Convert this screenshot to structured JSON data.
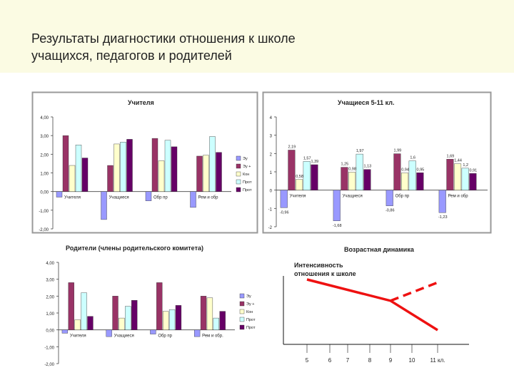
{
  "page": {
    "title_line1": "Результаты диагностики отношения к школе",
    "title_line2": "учащихся, педагогов и родителей",
    "background": "#fbfbe3"
  },
  "colors": {
    "series": [
      "#9999ff",
      "#993366",
      "#ffffcc",
      "#ccffff",
      "#660066"
    ],
    "line": "#ee1111",
    "frame": "#999999"
  },
  "chart_data": [
    {
      "type": "bar",
      "title": "Учителя",
      "categories": [
        "Учителя",
        "Учащиеся",
        "Обр пр",
        "Рем и обр"
      ],
      "y_tick_labels": [
        "4,00",
        "3,00",
        "2,00",
        "1,00",
        "0,00",
        "-1,00",
        "-2,00"
      ],
      "ylim": [
        -2,
        4
      ],
      "legend": [
        "Эу",
        "Эу +",
        "Кон",
        "Прот",
        "Прот"
      ],
      "legend_position": "right",
      "series": [
        {
          "values": [
            -0.3,
            -1.5,
            -0.5,
            -0.85
          ]
        },
        {
          "values": [
            3.0,
            1.4,
            2.85,
            1.9
          ]
        },
        {
          "values": [
            1.4,
            2.55,
            1.65,
            1.95
          ]
        },
        {
          "values": [
            2.5,
            2.65,
            2.75,
            2.95
          ]
        },
        {
          "values": [
            1.8,
            2.8,
            2.4,
            2.1
          ]
        }
      ]
    },
    {
      "type": "bar",
      "title": "Учащиеся 5-11 кл.",
      "categories": [
        "Учителя",
        "Учащиеся",
        "Обр пр",
        "Рем и обр"
      ],
      "y_tick_labels": [
        "4",
        "3",
        "2",
        "1",
        "0",
        "-1",
        "-2"
      ],
      "ylim": [
        -2,
        4
      ],
      "series": [
        {
          "values": [
            -0.96,
            -1.68,
            -0.86,
            -1.23
          ],
          "labels": [
            "-0,96",
            "-1,68",
            "-0,86",
            "-1,23"
          ]
        },
        {
          "values": [
            2.19,
            1.25,
            1.99,
            1.69
          ],
          "labels": [
            "2,19",
            "1,25",
            "1,99",
            "1,69"
          ]
        },
        {
          "values": [
            0.58,
            0.98,
            0.94,
            1.44
          ],
          "labels": [
            "0,58",
            "0,98",
            "0,94",
            "1,44"
          ]
        },
        {
          "values": [
            1.57,
            1.97,
            1.6,
            1.2
          ],
          "labels": [
            "1,57",
            "1,97",
            "1,6",
            "1,2"
          ]
        },
        {
          "values": [
            1.39,
            1.13,
            0.95,
            0.91
          ],
          "labels": [
            "1,39",
            "1,13",
            "0,95",
            "0,91"
          ]
        }
      ]
    },
    {
      "type": "bar",
      "title": "Родители (члены родительского комитета)",
      "categories": [
        "Учителя",
        "Учащиеся",
        "Обр пр",
        "Рем и обр."
      ],
      "y_tick_labels": [
        "4,00",
        "3,00",
        "2,00",
        "1,00",
        "0,00",
        "-1,00",
        "-2,00"
      ],
      "ylim": [
        -2,
        4
      ],
      "legend": [
        "Эу",
        "Эу +",
        "Кон",
        "Прот",
        "Прот"
      ],
      "legend_position": "right",
      "series": [
        {
          "values": [
            -0.2,
            -0.4,
            -0.25,
            -0.4
          ]
        },
        {
          "values": [
            2.8,
            2.0,
            2.8,
            2.0
          ]
        },
        {
          "values": [
            0.6,
            0.7,
            1.1,
            1.9
          ]
        },
        {
          "values": [
            2.2,
            1.4,
            1.2,
            0.7
          ]
        },
        {
          "values": [
            0.8,
            1.75,
            1.45,
            1.1
          ]
        }
      ]
    },
    {
      "type": "line",
      "title": "Возрастная динамика",
      "ylabel": "Интенсивность отношения к школе",
      "x": [
        "5",
        "6",
        "7",
        "8",
        "9",
        "10",
        "11 кл."
      ],
      "series": [
        {
          "style": "solid",
          "points": [
            {
              "x": "5",
              "y": 1.0
            },
            {
              "x": "9",
              "y": 0.58
            },
            {
              "x": "11 кл.",
              "y": 0.0
            }
          ]
        },
        {
          "style": "dashed",
          "points": [
            {
              "x": "9",
              "y": 0.58
            },
            {
              "x": "11 кл.",
              "y": 0.94
            }
          ]
        }
      ]
    }
  ]
}
